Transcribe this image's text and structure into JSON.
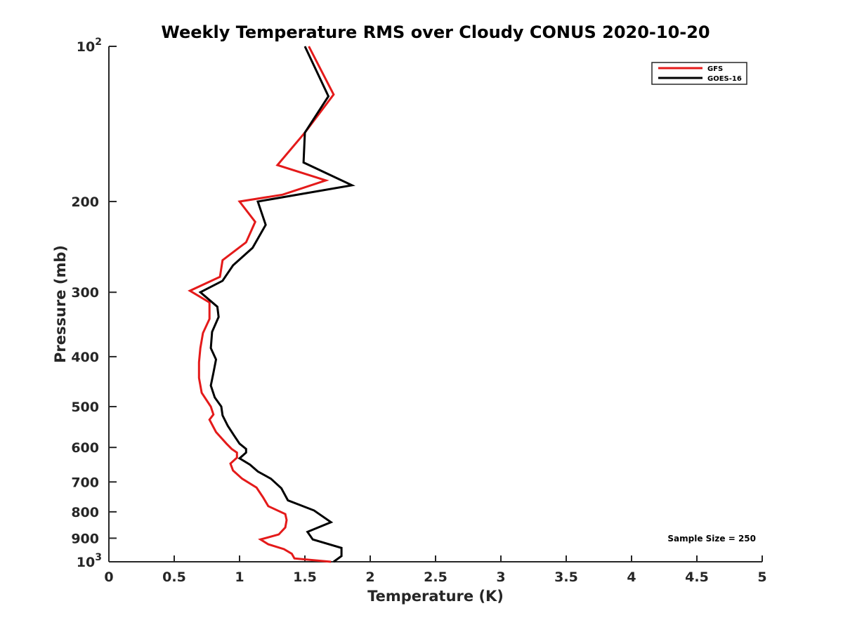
{
  "chart_data": {
    "type": "line",
    "title": "Weekly Temperature RMS over Cloudy CONUS 2020-10-20",
    "xlabel": "Temperature (K)",
    "ylabel": "Pressure (mb)",
    "xlim": [
      0,
      5
    ],
    "ylim": [
      100,
      1000
    ],
    "y_scale": "log",
    "y_reversed": true,
    "grid": false,
    "legend_position": "top-right",
    "x_ticks": [
      {
        "value": 0,
        "label": "0"
      },
      {
        "value": 0.5,
        "label": "0.5"
      },
      {
        "value": 1,
        "label": "1"
      },
      {
        "value": 1.5,
        "label": "1.5"
      },
      {
        "value": 2,
        "label": "2"
      },
      {
        "value": 2.5,
        "label": "2.5"
      },
      {
        "value": 3,
        "label": "3"
      },
      {
        "value": 3.5,
        "label": "3.5"
      },
      {
        "value": 4,
        "label": "4"
      },
      {
        "value": 4.5,
        "label": "4.5"
      },
      {
        "value": 5,
        "label": "5"
      }
    ],
    "y_ticks": [
      {
        "value": 100,
        "label": "10",
        "sup": "2"
      },
      {
        "value": 200,
        "label": "200"
      },
      {
        "value": 300,
        "label": "300"
      },
      {
        "value": 400,
        "label": "400"
      },
      {
        "value": 500,
        "label": "500"
      },
      {
        "value": 600,
        "label": "600"
      },
      {
        "value": 700,
        "label": "700"
      },
      {
        "value": 800,
        "label": "800"
      },
      {
        "value": 900,
        "label": "900"
      },
      {
        "value": 1000,
        "label": "10",
        "sup": "3"
      }
    ],
    "series": [
      {
        "name": "GFS",
        "color": "#e41a1a",
        "points": [
          [
            1.53,
            100
          ],
          [
            1.72,
            124
          ],
          [
            1.5,
            147
          ],
          [
            1.29,
            170
          ],
          [
            1.66,
            182
          ],
          [
            1.33,
            194
          ],
          [
            1.0,
            200
          ],
          [
            1.12,
            219
          ],
          [
            1.05,
            240
          ],
          [
            0.87,
            260
          ],
          [
            0.85,
            280
          ],
          [
            0.62,
            298
          ],
          [
            0.77,
            314
          ],
          [
            0.77,
            338
          ],
          [
            0.72,
            360
          ],
          [
            0.7,
            385
          ],
          [
            0.69,
            410
          ],
          [
            0.69,
            440
          ],
          [
            0.71,
            470
          ],
          [
            0.78,
            500
          ],
          [
            0.8,
            518
          ],
          [
            0.77,
            530
          ],
          [
            0.82,
            560
          ],
          [
            0.9,
            590
          ],
          [
            0.94,
            604
          ],
          [
            0.98,
            614
          ],
          [
            0.98,
            628
          ],
          [
            0.93,
            645
          ],
          [
            0.95,
            665
          ],
          [
            1.02,
            690
          ],
          [
            1.13,
            718
          ],
          [
            1.18,
            750
          ],
          [
            1.22,
            780
          ],
          [
            1.35,
            808
          ],
          [
            1.36,
            830
          ],
          [
            1.35,
            858
          ],
          [
            1.3,
            885
          ],
          [
            1.16,
            905
          ],
          [
            1.22,
            925
          ],
          [
            1.34,
            945
          ],
          [
            1.4,
            965
          ],
          [
            1.42,
            985
          ],
          [
            1.7,
            1000
          ]
        ]
      },
      {
        "name": "GOES-16",
        "color": "#000000",
        "points": [
          [
            1.5,
            100
          ],
          [
            1.68,
            125
          ],
          [
            1.5,
            147
          ],
          [
            1.49,
            168
          ],
          [
            1.86,
            186
          ],
          [
            1.14,
            200
          ],
          [
            1.2,
            222
          ],
          [
            1.1,
            246
          ],
          [
            0.95,
            266
          ],
          [
            0.87,
            285
          ],
          [
            0.7,
            300
          ],
          [
            0.83,
            320
          ],
          [
            0.84,
            335
          ],
          [
            0.79,
            358
          ],
          [
            0.78,
            385
          ],
          [
            0.82,
            405
          ],
          [
            0.8,
            430
          ],
          [
            0.78,
            455
          ],
          [
            0.81,
            480
          ],
          [
            0.86,
            500
          ],
          [
            0.87,
            520
          ],
          [
            0.91,
            545
          ],
          [
            0.96,
            570
          ],
          [
            1.0,
            590
          ],
          [
            1.05,
            604
          ],
          [
            1.05,
            614
          ],
          [
            1.0,
            630
          ],
          [
            1.08,
            648
          ],
          [
            1.14,
            668
          ],
          [
            1.24,
            690
          ],
          [
            1.32,
            720
          ],
          [
            1.37,
            760
          ],
          [
            1.57,
            795
          ],
          [
            1.7,
            838
          ],
          [
            1.52,
            875
          ],
          [
            1.56,
            905
          ],
          [
            1.78,
            940
          ],
          [
            1.78,
            975
          ],
          [
            1.72,
            1000
          ]
        ]
      }
    ],
    "annotations": [
      {
        "text": "Sample Size = 250",
        "position": "bottom-right"
      }
    ]
  }
}
